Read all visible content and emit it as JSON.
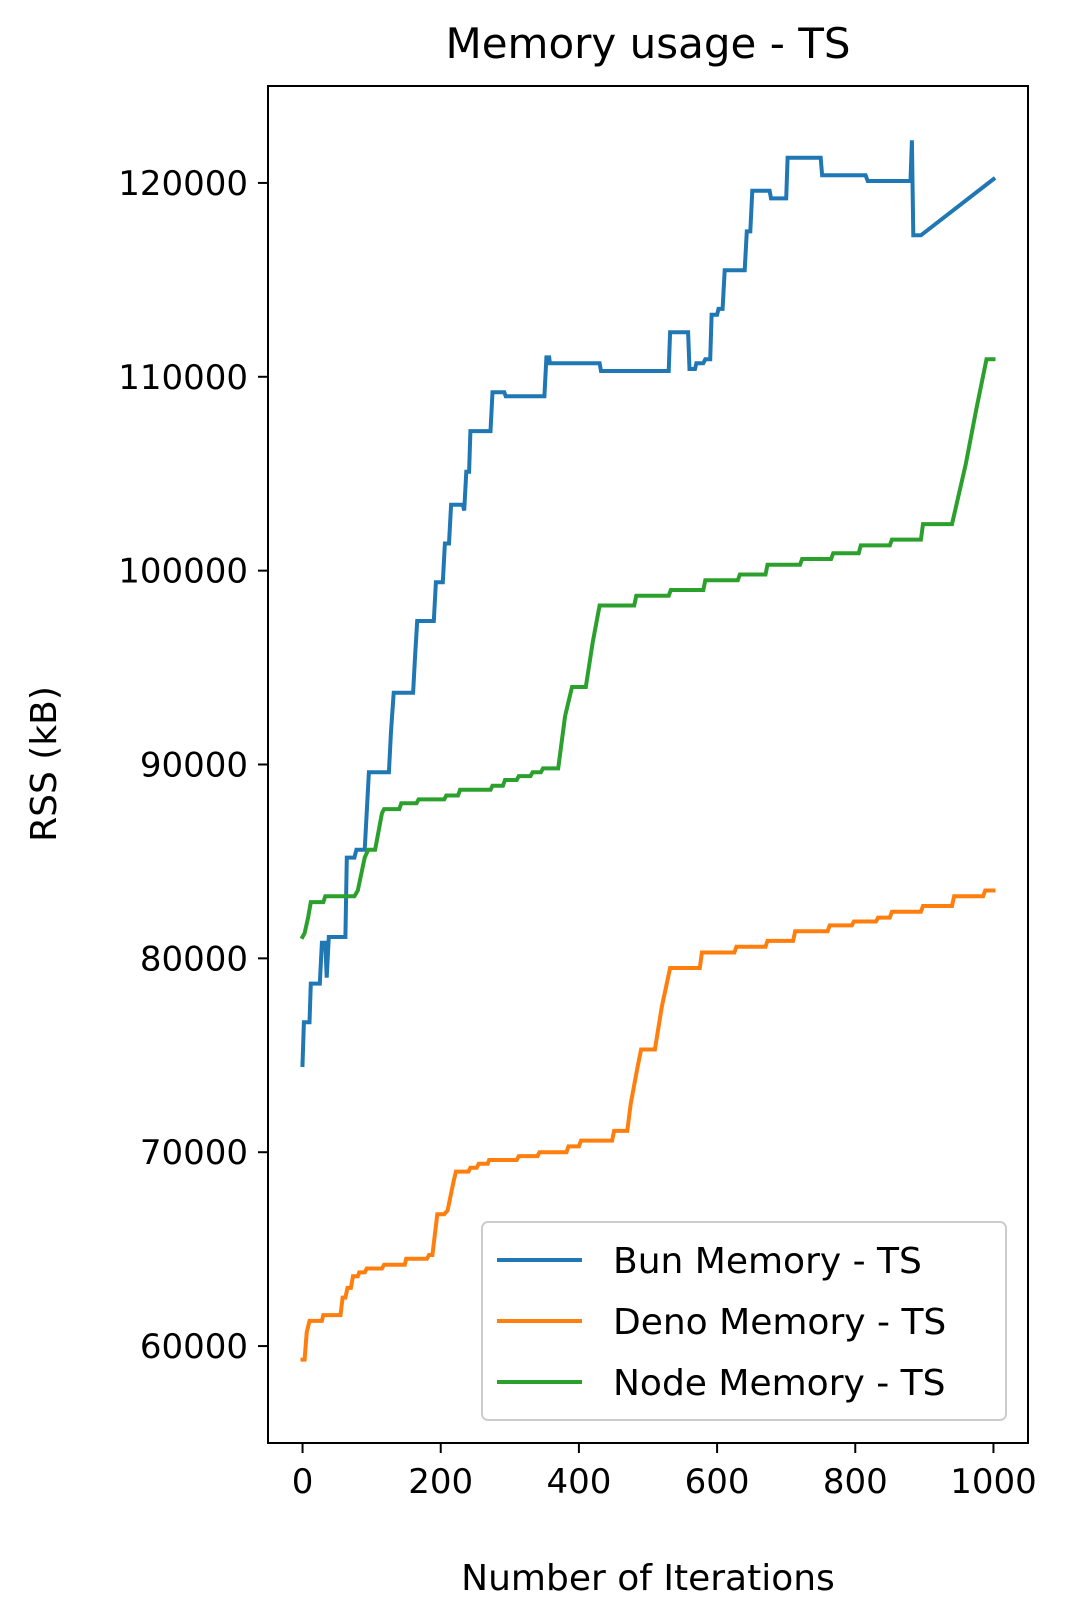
{
  "chart_data": {
    "type": "line",
    "title": "Memory usage - TS",
    "xlabel": "Number of Iterations",
    "ylabel": "RSS (kB)",
    "xlim": [
      -50,
      1050
    ],
    "ylim": [
      55000,
      125000
    ],
    "xticks": [
      0,
      200,
      400,
      600,
      800,
      1000
    ],
    "yticks": [
      60000,
      70000,
      80000,
      90000,
      100000,
      110000,
      120000
    ],
    "grid": false,
    "legend_position": "lower-right",
    "series": [
      {
        "name": "Bun Memory - TS",
        "color": "#1f77b4",
        "points": [
          [
            0,
            74500
          ],
          [
            2,
            76700
          ],
          [
            10,
            76700
          ],
          [
            12,
            78700
          ],
          [
            25,
            78700
          ],
          [
            28,
            80800
          ],
          [
            33,
            80800
          ],
          [
            35,
            79000
          ],
          [
            38,
            81100
          ],
          [
            62,
            81100
          ],
          [
            64,
            85200
          ],
          [
            75,
            85200
          ],
          [
            78,
            85600
          ],
          [
            90,
            85600
          ],
          [
            96,
            89600
          ],
          [
            125,
            89600
          ],
          [
            128,
            91700
          ],
          [
            132,
            93700
          ],
          [
            160,
            93700
          ],
          [
            163,
            95700
          ],
          [
            166,
            97400
          ],
          [
            190,
            97400
          ],
          [
            193,
            99400
          ],
          [
            203,
            99400
          ],
          [
            206,
            101400
          ],
          [
            212,
            101400
          ],
          [
            215,
            103400
          ],
          [
            232,
            103400
          ],
          [
            234,
            103100
          ],
          [
            237,
            105100
          ],
          [
            241,
            105100
          ],
          [
            243,
            107200
          ],
          [
            272,
            107200
          ],
          [
            275,
            109200
          ],
          [
            292,
            109200
          ],
          [
            294,
            109000
          ],
          [
            350,
            109000
          ],
          [
            353,
            111000
          ],
          [
            357,
            111000
          ],
          [
            358,
            110700
          ],
          [
            430,
            110700
          ],
          [
            432,
            110300
          ],
          [
            530,
            110300
          ],
          [
            532,
            112300
          ],
          [
            558,
            112300
          ],
          [
            560,
            110400
          ],
          [
            568,
            110400
          ],
          [
            570,
            110700
          ],
          [
            580,
            110700
          ],
          [
            583,
            110900
          ],
          [
            590,
            110900
          ],
          [
            592,
            113200
          ],
          [
            600,
            113200
          ],
          [
            602,
            113500
          ],
          [
            608,
            113500
          ],
          [
            611,
            115500
          ],
          [
            640,
            115500
          ],
          [
            643,
            117500
          ],
          [
            648,
            117500
          ],
          [
            651,
            119600
          ],
          [
            676,
            119600
          ],
          [
            678,
            119200
          ],
          [
            700,
            119200
          ],
          [
            702,
            121300
          ],
          [
            750,
            121300
          ],
          [
            752,
            120400
          ],
          [
            815,
            120400
          ],
          [
            818,
            120100
          ],
          [
            880,
            120100
          ],
          [
            882,
            122200
          ],
          [
            884,
            117300
          ],
          [
            895,
            117300
          ],
          [
            1000,
            120200
          ]
        ]
      },
      {
        "name": "Deno Memory - TS",
        "color": "#ff7f0e",
        "points": [
          [
            0,
            59300
          ],
          [
            3,
            59300
          ],
          [
            6,
            60700
          ],
          [
            10,
            61300
          ],
          [
            28,
            61300
          ],
          [
            30,
            61600
          ],
          [
            55,
            61600
          ],
          [
            58,
            62500
          ],
          [
            62,
            62500
          ],
          [
            65,
            63000
          ],
          [
            70,
            63000
          ],
          [
            73,
            63600
          ],
          [
            80,
            63600
          ],
          [
            82,
            63800
          ],
          [
            90,
            63800
          ],
          [
            93,
            64000
          ],
          [
            115,
            64000
          ],
          [
            118,
            64200
          ],
          [
            148,
            64200
          ],
          [
            150,
            64500
          ],
          [
            180,
            64500
          ],
          [
            183,
            64700
          ],
          [
            188,
            64700
          ],
          [
            195,
            66800
          ],
          [
            202,
            66800
          ],
          [
            205,
            66800
          ],
          [
            210,
            67000
          ],
          [
            218,
            68400
          ],
          [
            222,
            69000
          ],
          [
            240,
            69000
          ],
          [
            243,
            69200
          ],
          [
            252,
            69200
          ],
          [
            255,
            69400
          ],
          [
            268,
            69400
          ],
          [
            270,
            69600
          ],
          [
            310,
            69600
          ],
          [
            313,
            69800
          ],
          [
            340,
            69800
          ],
          [
            343,
            70000
          ],
          [
            382,
            70000
          ],
          [
            385,
            70300
          ],
          [
            400,
            70300
          ],
          [
            403,
            70600
          ],
          [
            448,
            70600
          ],
          [
            451,
            71100
          ],
          [
            470,
            71100
          ],
          [
            475,
            72500
          ],
          [
            485,
            74400
          ],
          [
            490,
            75300
          ],
          [
            510,
            75300
          ],
          [
            520,
            77500
          ],
          [
            532,
            79500
          ],
          [
            575,
            79500
          ],
          [
            578,
            80300
          ],
          [
            625,
            80300
          ],
          [
            628,
            80600
          ],
          [
            670,
            80600
          ],
          [
            673,
            80900
          ],
          [
            710,
            80900
          ],
          [
            713,
            81400
          ],
          [
            760,
            81400
          ],
          [
            763,
            81700
          ],
          [
            795,
            81700
          ],
          [
            798,
            81900
          ],
          [
            830,
            81900
          ],
          [
            833,
            82100
          ],
          [
            850,
            82100
          ],
          [
            853,
            82400
          ],
          [
            895,
            82400
          ],
          [
            898,
            82700
          ],
          [
            940,
            82700
          ],
          [
            943,
            83200
          ],
          [
            985,
            83200
          ],
          [
            988,
            83500
          ],
          [
            1000,
            83500
          ]
        ]
      },
      {
        "name": "Node Memory - TS",
        "color": "#2ca02c",
        "points": [
          [
            0,
            81100
          ],
          [
            3,
            81300
          ],
          [
            8,
            82100
          ],
          [
            12,
            82900
          ],
          [
            30,
            82900
          ],
          [
            33,
            83200
          ],
          [
            75,
            83200
          ],
          [
            80,
            83500
          ],
          [
            90,
            85200
          ],
          [
            95,
            85600
          ],
          [
            105,
            85600
          ],
          [
            115,
            87500
          ],
          [
            118,
            87700
          ],
          [
            140,
            87700
          ],
          [
            143,
            88000
          ],
          [
            165,
            88000
          ],
          [
            168,
            88200
          ],
          [
            205,
            88200
          ],
          [
            208,
            88400
          ],
          [
            225,
            88400
          ],
          [
            228,
            88700
          ],
          [
            272,
            88700
          ],
          [
            275,
            88900
          ],
          [
            290,
            88900
          ],
          [
            293,
            89200
          ],
          [
            310,
            89200
          ],
          [
            313,
            89400
          ],
          [
            330,
            89400
          ],
          [
            333,
            89600
          ],
          [
            345,
            89600
          ],
          [
            348,
            89800
          ],
          [
            370,
            89800
          ],
          [
            380,
            92500
          ],
          [
            390,
            94000
          ],
          [
            410,
            94000
          ],
          [
            420,
            96300
          ],
          [
            430,
            98200
          ],
          [
            480,
            98200
          ],
          [
            483,
            98700
          ],
          [
            530,
            98700
          ],
          [
            533,
            99000
          ],
          [
            580,
            99000
          ],
          [
            583,
            99500
          ],
          [
            630,
            99500
          ],
          [
            633,
            99800
          ],
          [
            670,
            99800
          ],
          [
            673,
            100300
          ],
          [
            720,
            100300
          ],
          [
            723,
            100600
          ],
          [
            765,
            100600
          ],
          [
            768,
            100900
          ],
          [
            805,
            100900
          ],
          [
            808,
            101300
          ],
          [
            850,
            101300
          ],
          [
            853,
            101600
          ],
          [
            895,
            101600
          ],
          [
            898,
            102400
          ],
          [
            940,
            102400
          ],
          [
            960,
            105500
          ],
          [
            975,
            108300
          ],
          [
            990,
            110900
          ],
          [
            1000,
            110900
          ]
        ]
      }
    ]
  }
}
